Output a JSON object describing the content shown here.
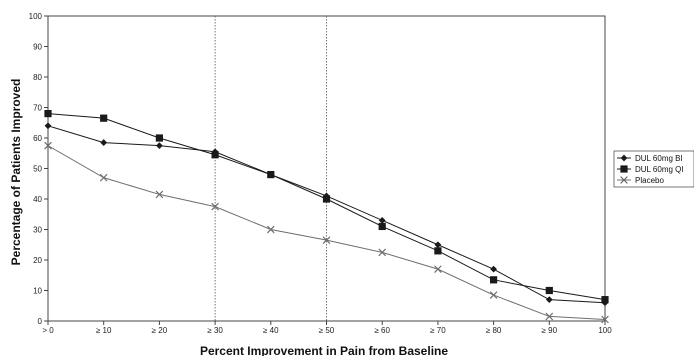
{
  "chart_data": {
    "type": "line",
    "title": "",
    "xlabel": "Percent Improvement in Pain from Baseline",
    "ylabel": "Percentage of Patients Improved",
    "categories": [
      "> 0",
      "≥ 10",
      "≥ 20",
      "≥ 30",
      "≥ 40",
      "≥ 50",
      "≥ 60",
      "≥ 70",
      "≥ 80",
      "≥ 90",
      "100"
    ],
    "ylim": [
      0,
      100
    ],
    "yticks": [
      0,
      10,
      20,
      30,
      40,
      50,
      60,
      70,
      80,
      90,
      100
    ],
    "reference_lines_at": [
      "≥ 30",
      "≥ 50"
    ],
    "legend_position": "right",
    "series": [
      {
        "name": "DUL 60mg BI",
        "marker": "diamond",
        "values": [
          64,
          58.5,
          57.5,
          55.5,
          48,
          41,
          33,
          25,
          17,
          7,
          6
        ]
      },
      {
        "name": "DUL 60mg QI",
        "marker": "square",
        "values": [
          68,
          66.5,
          60,
          54.5,
          48,
          40,
          31,
          23,
          13.5,
          10,
          7
        ]
      },
      {
        "name": "Placebo",
        "marker": "x",
        "values": [
          57.5,
          47,
          41.5,
          37.5,
          30,
          26.5,
          22.5,
          17,
          8.5,
          1.5,
          0.5
        ]
      }
    ]
  }
}
